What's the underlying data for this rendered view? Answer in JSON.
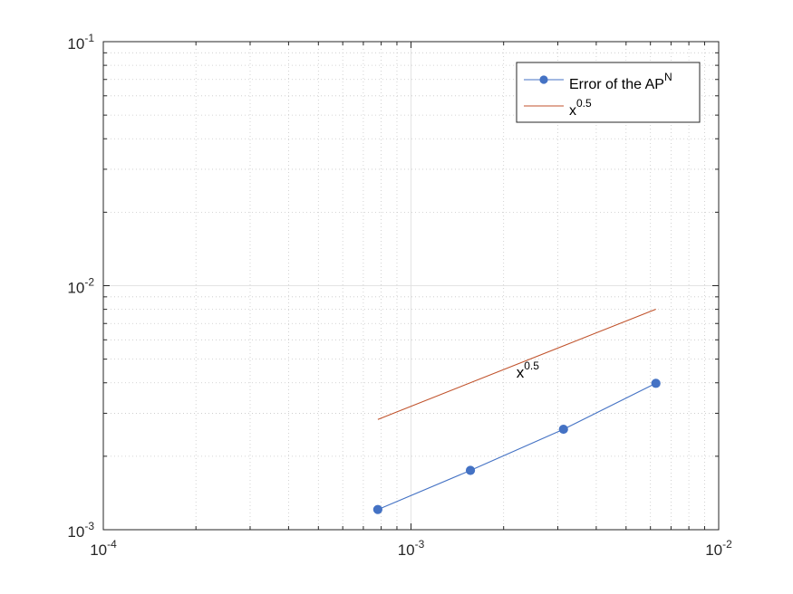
{
  "chart_data": {
    "type": "line",
    "xscale": "log",
    "yscale": "log",
    "xlim": [
      0.0001,
      0.01
    ],
    "ylim": [
      0.001,
      0.1
    ],
    "grid": true,
    "minor_grid": true,
    "legend_location": "top-right",
    "x_ticks": [
      {
        "base": "10",
        "exp": "-4"
      },
      {
        "base": "10",
        "exp": "-3"
      },
      {
        "base": "10",
        "exp": "-2"
      }
    ],
    "y_ticks": [
      {
        "base": "10",
        "exp": "-3"
      },
      {
        "base": "10",
        "exp": "-2"
      },
      {
        "base": "10",
        "exp": "-1"
      }
    ],
    "series": [
      {
        "name": "Error of the AP",
        "name_superscript": "N",
        "color": "#4472c4",
        "marker": "circle",
        "x": [
          0.00078,
          0.00156,
          0.00313,
          0.00625
        ],
        "y": [
          0.00121,
          0.00175,
          0.00258,
          0.00398
        ]
      },
      {
        "name": "x",
        "name_superscript": "0.5",
        "color": "#c0522b",
        "marker": "none",
        "x": [
          0.00078,
          0.00625
        ],
        "y": [
          0.00283,
          0.00801
        ]
      }
    ],
    "annotations": [
      {
        "text": "x",
        "superscript": "0.5",
        "x": 0.0022,
        "y": 0.0042
      }
    ]
  }
}
